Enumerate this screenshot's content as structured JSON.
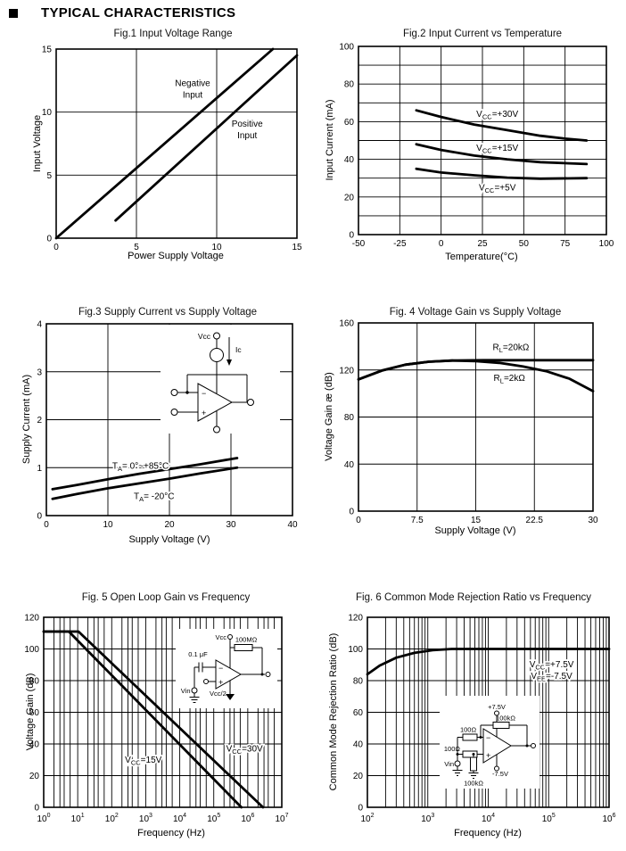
{
  "header": {
    "title": "TYPICAL CHARACTERISTICS",
    "bullet_icon": "filled-square"
  },
  "chart_data": [
    {
      "type": "line",
      "title": "Fig.1 Input Voltage Range",
      "xlabel": "Power Supply Voltage",
      "ylabel": "Input Voltage",
      "xscale": "linear",
      "xlim": [
        0,
        15
      ],
      "ylim": [
        0,
        15
      ],
      "xticks": [
        [
          0,
          "0"
        ],
        [
          5,
          "5"
        ],
        [
          10,
          "10"
        ],
        [
          15,
          "15"
        ]
      ],
      "yticks": [
        [
          0,
          "0"
        ],
        [
          5,
          "5"
        ],
        [
          10,
          "10"
        ],
        [
          15,
          "15"
        ]
      ],
      "xgrid": [
        5,
        10
      ],
      "ygrid": [
        5,
        10
      ],
      "series": [
        {
          "name": "Negative Input",
          "points": [
            [
              0,
              0
            ],
            [
              13.5,
              15
            ]
          ]
        },
        {
          "name": "Positive Input",
          "points": [
            [
              3.7,
              1.4
            ],
            [
              15,
              14.5
            ]
          ]
        }
      ],
      "annotations": [
        {
          "x": 8.5,
          "y": 11.8,
          "lines": [
            [
              "Negative"
            ],
            [
              "Input"
            ]
          ]
        },
        {
          "x": 11.9,
          "y": 8.6,
          "lines": [
            [
              "Positive"
            ],
            [
              "Input"
            ]
          ]
        }
      ]
    },
    {
      "type": "line",
      "title": "Fig.2 Input Current vs Temperature",
      "xlabel": "Temperature(°C)",
      "ylabel": "Input Current (mA)",
      "xscale": "linear",
      "xlim": [
        -50,
        100
      ],
      "ylim": [
        0,
        100
      ],
      "xticks": [
        [
          -50,
          "-50"
        ],
        [
          -25,
          "-25"
        ],
        [
          0,
          "0"
        ],
        [
          25,
          "25"
        ],
        [
          50,
          "50"
        ],
        [
          75,
          "75"
        ],
        [
          100,
          "100"
        ]
      ],
      "yticks": [
        [
          0,
          "0"
        ],
        [
          20,
          "20"
        ],
        [
          40,
          "40"
        ],
        [
          60,
          "60"
        ],
        [
          80,
          "80"
        ],
        [
          100,
          "100"
        ]
      ],
      "xgrid": [
        -25,
        0,
        25,
        50,
        75
      ],
      "ygrid": [
        10,
        20,
        30,
        40,
        50,
        60,
        70,
        80,
        90
      ],
      "series": [
        {
          "name": "Vcc=+30V",
          "points": [
            [
              -15,
              66
            ],
            [
              0,
              62.5
            ],
            [
              20,
              58.5
            ],
            [
              40,
              55.5
            ],
            [
              60,
              52.5
            ],
            [
              75,
              51
            ],
            [
              88,
              50
            ]
          ]
        },
        {
          "name": "Vcc=+15V",
          "points": [
            [
              -15,
              48
            ],
            [
              0,
              45
            ],
            [
              20,
              42
            ],
            [
              40,
              40
            ],
            [
              60,
              38.5
            ],
            [
              88,
              37.5
            ]
          ]
        },
        {
          "name": "Vcc=+5V",
          "points": [
            [
              -15,
              35
            ],
            [
              0,
              33
            ],
            [
              20,
              31.5
            ],
            [
              40,
              30.3
            ],
            [
              60,
              29.7
            ],
            [
              88,
              30
            ]
          ]
        }
      ],
      "annotations": [
        {
          "x": 34,
          "y": 64,
          "lines": [
            [
              "V",
              "_CC",
              "=+30V"
            ]
          ]
        },
        {
          "x": 34,
          "y": 46,
          "lines": [
            [
              "V",
              "_CC",
              "=+15V"
            ]
          ]
        },
        {
          "x": 34,
          "y": 25,
          "lines": [
            [
              "V",
              "_CC",
              "=+5V"
            ]
          ]
        }
      ]
    },
    {
      "type": "line",
      "title": "Fig.3 Supply Current vs Supply Voltage",
      "xlabel": "Supply Voltage (V)",
      "ylabel": "Supply Current (mA)",
      "xscale": "linear",
      "xlim": [
        0,
        40
      ],
      "ylim": [
        0,
        4
      ],
      "xticks": [
        [
          0,
          "0"
        ],
        [
          10,
          "10"
        ],
        [
          20,
          "20"
        ],
        [
          30,
          "30"
        ],
        [
          40,
          "40"
        ]
      ],
      "yticks": [
        [
          0,
          "0"
        ],
        [
          1,
          "1"
        ],
        [
          2,
          "2"
        ],
        [
          3,
          "3"
        ],
        [
          4,
          "4"
        ]
      ],
      "xgrid": [
        10,
        20,
        30
      ],
      "ygrid": [
        1,
        2,
        3
      ],
      "series": [
        {
          "name": "TA=0~+85°C",
          "points": [
            [
              1,
              0.55
            ],
            [
              5,
              0.64
            ],
            [
              10,
              0.76
            ],
            [
              15,
              0.87
            ],
            [
              20,
              0.97
            ],
            [
              25,
              1.07
            ],
            [
              31,
              1.2
            ]
          ]
        },
        {
          "name": "TA=-20°C",
          "points": [
            [
              1,
              0.35
            ],
            [
              5,
              0.45
            ],
            [
              10,
              0.57
            ],
            [
              15,
              0.67
            ],
            [
              20,
              0.77
            ],
            [
              25,
              0.88
            ],
            [
              31,
              1.0
            ]
          ]
        }
      ],
      "annotations": [
        {
          "x": 15.3,
          "y": 1.03,
          "lines": [
            [
              "T",
              "_A",
              "= 0°~+85°C"
            ]
          ]
        },
        {
          "x": 17.5,
          "y": 0.4,
          "lines": [
            [
              "T",
              "_A",
              "= -20°C"
            ]
          ]
        }
      ],
      "inset_labels": {
        "vcc": "Vcc",
        "ic": "Ic",
        "minus": "−",
        "plus": "+"
      }
    },
    {
      "type": "line",
      "title": "Fig. 4 Voltage Gain vs Supply Voltage",
      "xlabel": "Supply Voltage (V)",
      "ylabel": "Voltage Gain æ (dB)",
      "xscale": "linear",
      "xlim": [
        0,
        30
      ],
      "ylim": [
        0,
        160
      ],
      "xticks": [
        [
          0,
          "0"
        ],
        [
          7.5,
          "7.5"
        ],
        [
          15,
          "15"
        ],
        [
          22.5,
          "22.5"
        ],
        [
          30,
          "30"
        ]
      ],
      "yticks": [
        [
          0,
          "0"
        ],
        [
          40,
          "40"
        ],
        [
          80,
          "80"
        ],
        [
          120,
          "120"
        ],
        [
          160,
          "160"
        ]
      ],
      "xgrid": [
        7.5,
        15,
        22.5
      ],
      "ygrid": [
        40,
        80,
        120
      ],
      "series": [
        {
          "name": "RL=20kΩ",
          "points": [
            [
              0,
              112
            ],
            [
              3,
              119.5
            ],
            [
              6,
              124.5
            ],
            [
              9,
              127
            ],
            [
              12,
              128
            ],
            [
              16,
              128.3
            ],
            [
              30,
              128.3
            ]
          ]
        },
        {
          "name": "RL=2kΩ",
          "points": [
            [
              0,
              112
            ],
            [
              3,
              119.5
            ],
            [
              6,
              124.5
            ],
            [
              9,
              127
            ],
            [
              12,
              128
            ],
            [
              15,
              127.5
            ],
            [
              18,
              126
            ],
            [
              21,
              123
            ],
            [
              24,
              119
            ],
            [
              27,
              112.5
            ],
            [
              30,
              102
            ]
          ]
        }
      ],
      "annotations": [
        {
          "x": 19.5,
          "y": 139,
          "lines": [
            [
              "R",
              "_L",
              "=20kΩ"
            ]
          ]
        },
        {
          "x": 19.3,
          "y": 113,
          "lines": [
            [
              "R",
              "_L",
              "=2kΩ"
            ]
          ]
        }
      ]
    },
    {
      "type": "line",
      "title": "Fig. 5 Open Loop Gain vs Frequency",
      "xlabel": "Frequency (Hz)",
      "ylabel": "Voltage Gain  (dB)",
      "xscale": "log",
      "xlim": [
        1,
        10000000
      ],
      "ylim": [
        0,
        120
      ],
      "xticks": [
        [
          1,
          "0"
        ],
        [
          10,
          "1"
        ],
        [
          100,
          "2"
        ],
        [
          1000,
          "3"
        ],
        [
          10000,
          "4"
        ],
        [
          100000,
          "5"
        ],
        [
          1000000,
          "6"
        ],
        [
          10000000,
          "7"
        ]
      ],
      "xtick_style": "pow10",
      "yticks": [
        [
          0,
          "0"
        ],
        [
          20,
          "20"
        ],
        [
          40,
          "40"
        ],
        [
          60,
          "60"
        ],
        [
          80,
          "80"
        ],
        [
          100,
          "100"
        ],
        [
          120,
          "120"
        ]
      ],
      "xgrid": [
        10,
        100,
        1000,
        10000,
        100000,
        1000000
      ],
      "xminor": [
        2,
        3,
        4,
        6
      ],
      "ygrid": [
        20,
        40,
        60,
        80,
        100
      ],
      "series": [
        {
          "name": "Vcc=15V",
          "points": [
            [
              1,
              111
            ],
            [
              5.5,
              111
            ],
            [
              650000,
              0
            ]
          ]
        },
        {
          "name": "Vcc=30V",
          "points": [
            [
              1,
              111
            ],
            [
              10.5,
              111
            ],
            [
              2800000,
              0
            ]
          ]
        }
      ],
      "annotations": [
        {
          "x": 850,
          "y": 30,
          "lines": [
            [
              "V",
              "_CC",
              "=15V"
            ]
          ]
        },
        {
          "x": 800000,
          "y": 37,
          "lines": [
            [
              "V",
              "_CC",
              "=30V"
            ]
          ]
        }
      ],
      "inset_labels": {
        "vcc": "Vcc",
        "rf": "100MΩ",
        "cin": "0.1 μF",
        "vin": "Vin",
        "vref": "Vcc/2",
        "minus": "−",
        "plus": "+"
      }
    },
    {
      "type": "line",
      "title": "Fig. 6 Common Mode Rejection Ratio vs Frequency",
      "xlabel": "Frequency (Hz)",
      "ylabel": "Common Mode Rejection Ratio  (dB)",
      "xscale": "log",
      "xlim": [
        100,
        1000000
      ],
      "ylim": [
        0,
        120
      ],
      "xticks": [
        [
          100,
          "2"
        ],
        [
          1000,
          "3"
        ],
        [
          10000,
          "4"
        ],
        [
          100000,
          "5"
        ],
        [
          1000000,
          "6"
        ]
      ],
      "xtick_style": "pow10",
      "yticks": [
        [
          0,
          "0"
        ],
        [
          20,
          "20"
        ],
        [
          40,
          "40"
        ],
        [
          60,
          "60"
        ],
        [
          80,
          "80"
        ],
        [
          100,
          "100"
        ],
        [
          120,
          "120"
        ]
      ],
      "xgrid": [
        1000,
        10000,
        100000
      ],
      "xminor": [
        2,
        3,
        4,
        5,
        6,
        7,
        8,
        9
      ],
      "ygrid": [
        20,
        40,
        60,
        80,
        100
      ],
      "series": [
        {
          "name": "CMRR",
          "points": [
            [
              100,
              84
            ],
            [
              160,
              89.5
            ],
            [
              300,
              94.5
            ],
            [
              600,
              97.5
            ],
            [
              1200,
              99.2
            ],
            [
              2500,
              100
            ],
            [
              1000000,
              100
            ]
          ]
        }
      ],
      "annotations": [
        {
          "x": 112000,
          "y": 86.5,
          "lines": [
            [
              "V",
              "_CC",
              "=+7.5V"
            ],
            [
              "V",
              "_EE",
              "=-7.5V"
            ]
          ]
        }
      ],
      "inset_labels": {
        "vp": "+7.5V",
        "rf": "100kΩ",
        "r1": "100Ω",
        "r2": "100Ω",
        "vin": "Vin",
        "rg": "100kΩ",
        "vn": "-7.5V",
        "minus": "−",
        "plus": "+"
      }
    }
  ]
}
